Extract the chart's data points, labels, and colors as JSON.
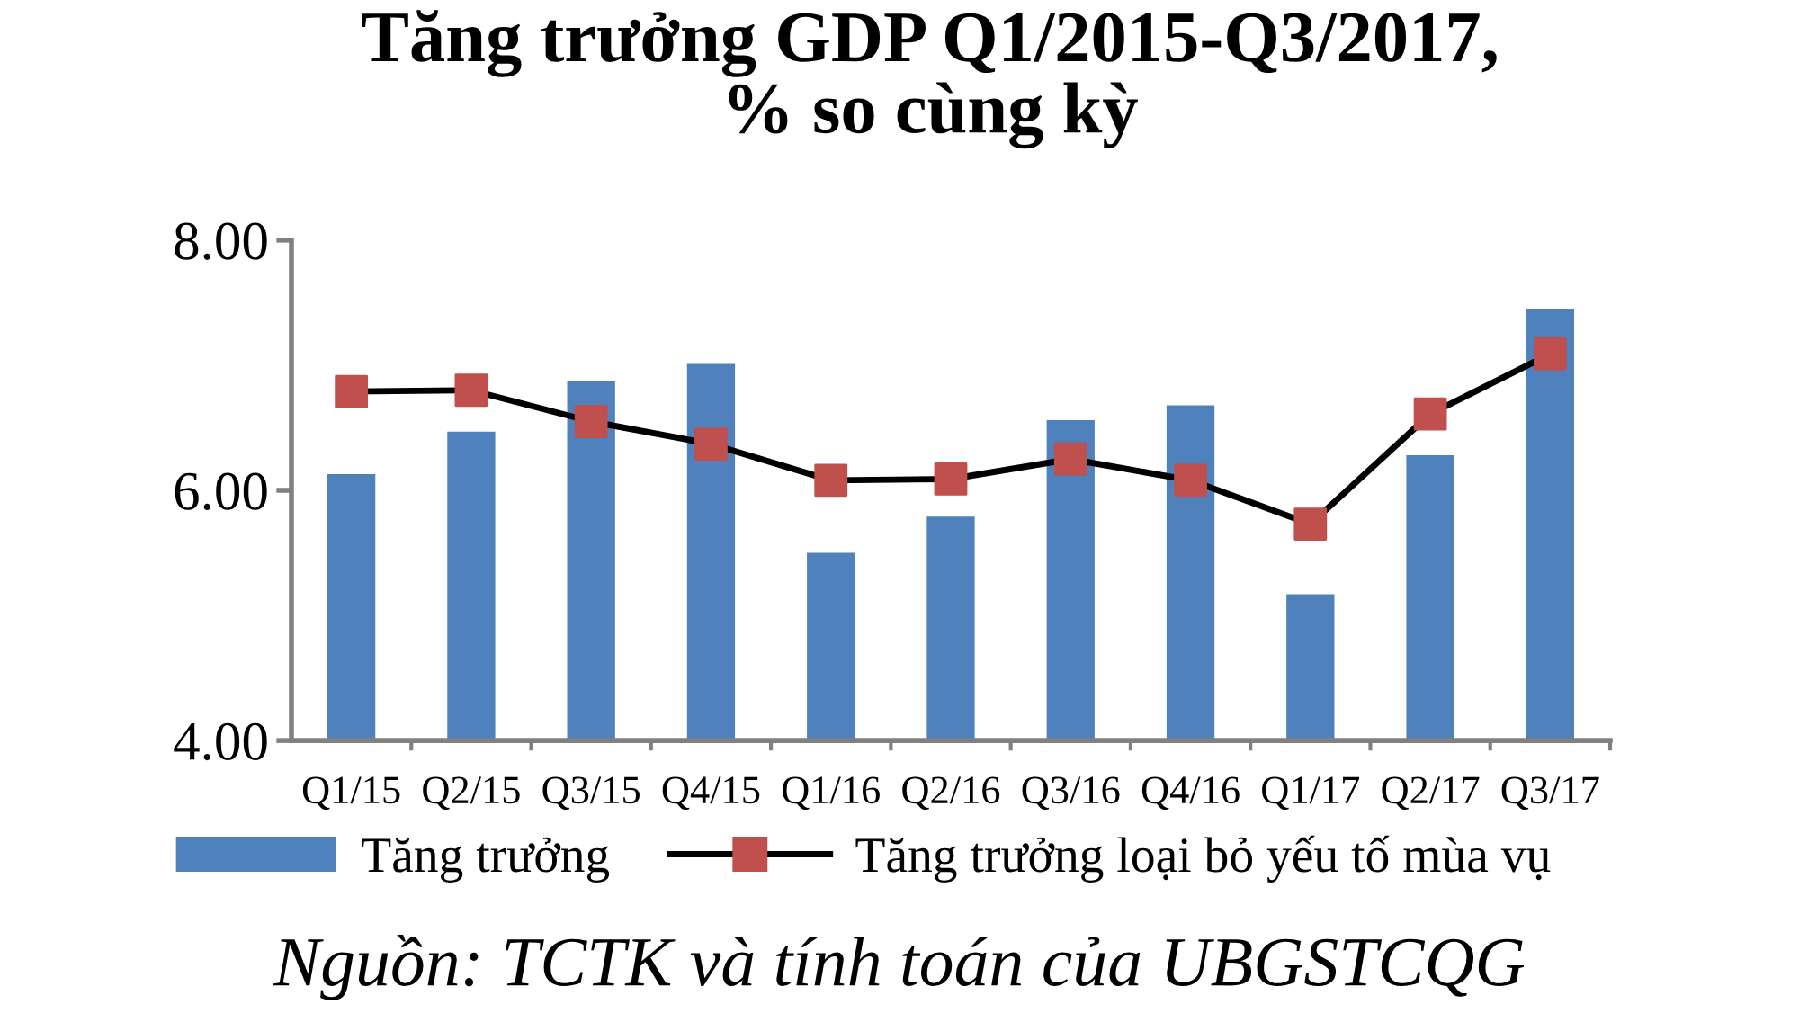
{
  "chart_data": {
    "type": "bar",
    "title": "Tăng trưởng GDP Q1/2015-Q3/2017,\n% so cùng kỳ",
    "categories": [
      "Q1/15",
      "Q2/15",
      "Q3/15",
      "Q4/15",
      "Q1/16",
      "Q2/16",
      "Q3/16",
      "Q4/16",
      "Q1/17",
      "Q2/17",
      "Q3/17"
    ],
    "series": [
      {
        "name": "Tăng trưởng",
        "color": "#4f81bd",
        "values": [
          6.13,
          6.47,
          6.87,
          7.01,
          5.5,
          5.79,
          6.56,
          6.68,
          5.17,
          6.28,
          7.45
        ]
      },
      {
        "name": "Tăng trưởng loại bỏ yếu tố mùa vụ",
        "type": "line",
        "color": "#000000",
        "colors": [
          "#c0504d",
          "#c0504d",
          "#c0504d",
          "#c0504d",
          "#c0504d",
          "#c0504d",
          "#c0504d",
          "#c0504d",
          "#c0504d",
          "#c0504d",
          "#c0504d"
        ],
        "values": [
          6.79,
          6.8,
          6.55,
          6.37,
          6.08,
          6.09,
          6.25,
          6.08,
          5.73,
          6.61,
          7.09
        ]
      }
    ],
    "ylim": [
      4,
      8
    ],
    "yticks": [
      {
        "value": 4,
        "label": "4.00"
      },
      {
        "value": 6,
        "label": "6.00"
      },
      {
        "value": 8,
        "label": "8.00"
      }
    ],
    "legend": "bottom",
    "marker": "square",
    "line_style": "solid",
    "annotations": [
      "Nguồn: TCTK và tính toán của UBGSTCQG"
    ]
  }
}
